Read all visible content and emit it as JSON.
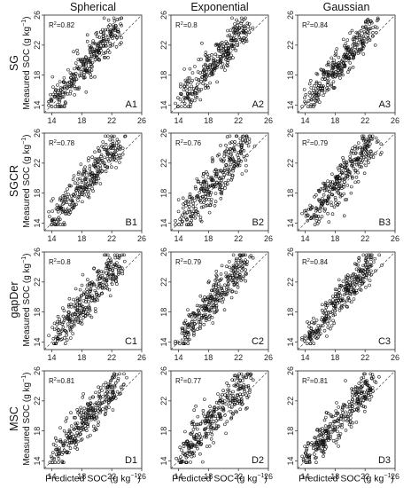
{
  "figure": {
    "columns": [
      "Spherical",
      "Exponential",
      "Gaussian"
    ],
    "rows": [
      "SG",
      "SGCR",
      "gapDer",
      "MSC"
    ],
    "ylabel_main": "Measured  SOC (g kg",
    "ylabel_sup": "−1",
    "ylabel_close": ")",
    "xlabel_main": "Predicted SOC (g kg",
    "xlabel_sup": "−1",
    "xlabel_close": ")",
    "r2_prefix": "R",
    "r2_sup": "2",
    "ticks": [
      "14",
      "18",
      "22",
      "26"
    ]
  },
  "chart_data": [
    {
      "type": "scatter",
      "panel": "A1",
      "row": "SG",
      "column": "Spherical",
      "r2": "0.82",
      "xlim": [
        13,
        26
      ],
      "ylim": [
        13,
        26
      ],
      "reference_line": "1:1 dashed"
    },
    {
      "type": "scatter",
      "panel": "A2",
      "row": "SG",
      "column": "Exponential",
      "r2": "0.8",
      "xlim": [
        13,
        26
      ],
      "ylim": [
        13,
        26
      ],
      "reference_line": "1:1 dashed"
    },
    {
      "type": "scatter",
      "panel": "A3",
      "row": "SG",
      "column": "Gaussian",
      "r2": "0.84",
      "xlim": [
        13,
        26
      ],
      "ylim": [
        13,
        26
      ],
      "reference_line": "1:1 dashed"
    },
    {
      "type": "scatter",
      "panel": "B1",
      "row": "SGCR",
      "column": "Spherical",
      "r2": "0.78",
      "xlim": [
        13,
        26
      ],
      "ylim": [
        13,
        26
      ],
      "reference_line": "1:1 dashed"
    },
    {
      "type": "scatter",
      "panel": "B2",
      "row": "SGCR",
      "column": "Exponential",
      "r2": "0.76",
      "xlim": [
        13,
        26
      ],
      "ylim": [
        13,
        26
      ],
      "reference_line": "1:1 dashed"
    },
    {
      "type": "scatter",
      "panel": "B3",
      "row": "SGCR",
      "column": "Gaussian",
      "r2": "0.79",
      "xlim": [
        13,
        26
      ],
      "ylim": [
        13,
        26
      ],
      "reference_line": "1:1 dashed"
    },
    {
      "type": "scatter",
      "panel": "C1",
      "row": "gapDer",
      "column": "Spherical",
      "r2": "0.8",
      "xlim": [
        13,
        26
      ],
      "ylim": [
        13,
        26
      ],
      "reference_line": "1:1 dashed"
    },
    {
      "type": "scatter",
      "panel": "C2",
      "row": "gapDer",
      "column": "Exponential",
      "r2": "0.79",
      "xlim": [
        13,
        26
      ],
      "ylim": [
        13,
        26
      ],
      "reference_line": "1:1 dashed"
    },
    {
      "type": "scatter",
      "panel": "C3",
      "row": "gapDer",
      "column": "Gaussian",
      "r2": "0.84",
      "xlim": [
        13,
        26
      ],
      "ylim": [
        13,
        26
      ],
      "reference_line": "1:1 dashed"
    },
    {
      "type": "scatter",
      "panel": "D1",
      "row": "MSC",
      "column": "Spherical",
      "r2": "0.81",
      "xlim": [
        13,
        26
      ],
      "ylim": [
        13,
        26
      ],
      "reference_line": "1:1 dashed"
    },
    {
      "type": "scatter",
      "panel": "D2",
      "row": "MSC",
      "column": "Exponential",
      "r2": "0.77",
      "xlim": [
        13,
        26
      ],
      "ylim": [
        13,
        26
      ],
      "reference_line": "1:1 dashed"
    },
    {
      "type": "scatter",
      "panel": "D3",
      "row": "MSC",
      "column": "Gaussian",
      "r2": "0.81",
      "xlim": [
        13,
        26
      ],
      "ylim": [
        13,
        26
      ],
      "reference_line": "1:1 dashed"
    }
  ]
}
